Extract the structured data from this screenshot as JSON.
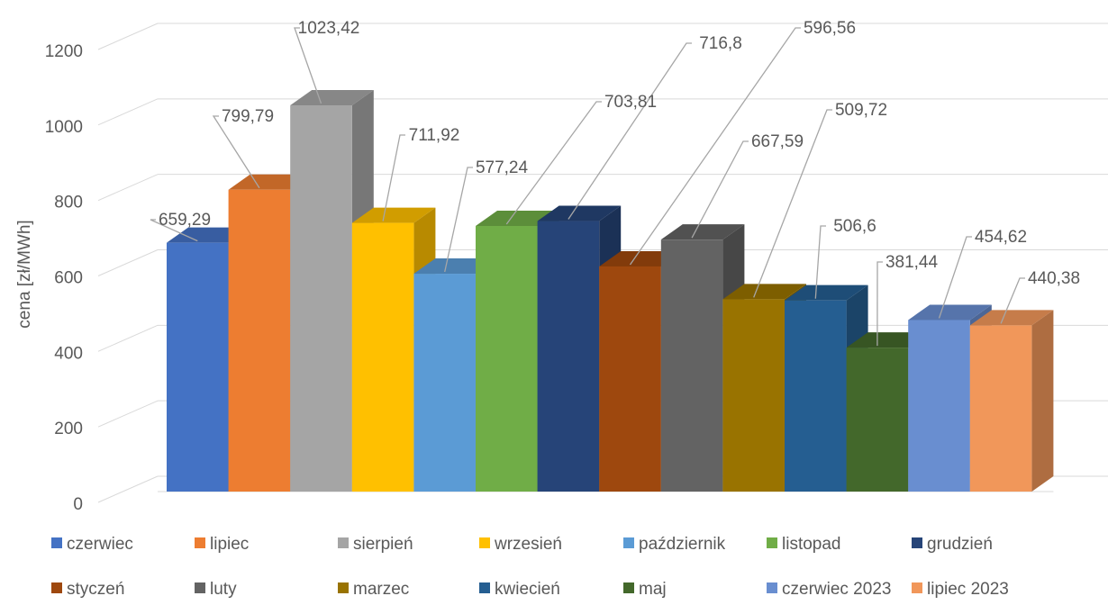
{
  "chart_data": {
    "type": "bar",
    "ylabel": "cena [zł/MWh]",
    "ylim": [
      0,
      1200
    ],
    "yticks": [
      0,
      200,
      400,
      600,
      800,
      1000,
      1200
    ],
    "grid": true,
    "legend_position": "bottom",
    "style": "3d-column",
    "series": [
      {
        "name": "czerwiec",
        "value": 659.29,
        "label": "659,29",
        "color": "#4472C4"
      },
      {
        "name": "lipiec",
        "value": 799.79,
        "label": "799,79",
        "color": "#ED7D31"
      },
      {
        "name": "sierpień",
        "value": 1023.42,
        "label": "1023,42",
        "color": "#A5A5A5"
      },
      {
        "name": "wrzesień",
        "value": 711.92,
        "label": "711,92",
        "color": "#FFC000"
      },
      {
        "name": "październik",
        "value": 577.24,
        "label": "577,24",
        "color": "#5B9BD5"
      },
      {
        "name": "listopad",
        "value": 703.81,
        "label": "703,81",
        "color": "#70AD47"
      },
      {
        "name": "grudzień",
        "value": 716.8,
        "label": "716,8",
        "color": "#264478"
      },
      {
        "name": "styczeń",
        "value": 596.56,
        "label": "596,56",
        "color": "#9E480E"
      },
      {
        "name": "luty",
        "value": 667.59,
        "label": "667,59",
        "color": "#636363"
      },
      {
        "name": "marzec",
        "value": 509.72,
        "label": "509,72",
        "color": "#997300"
      },
      {
        "name": "kwiecień",
        "value": 506.6,
        "label": "506,6",
        "color": "#255E91"
      },
      {
        "name": "maj",
        "value": 381.44,
        "label": "381,44",
        "color": "#43682B"
      },
      {
        "name": "czerwiec 2023",
        "value": 454.62,
        "label": "454,62",
        "color": "#698ED0"
      },
      {
        "name": "lipiec 2023",
        "value": 440.38,
        "label": "440,38",
        "color": "#F1975A"
      }
    ]
  }
}
